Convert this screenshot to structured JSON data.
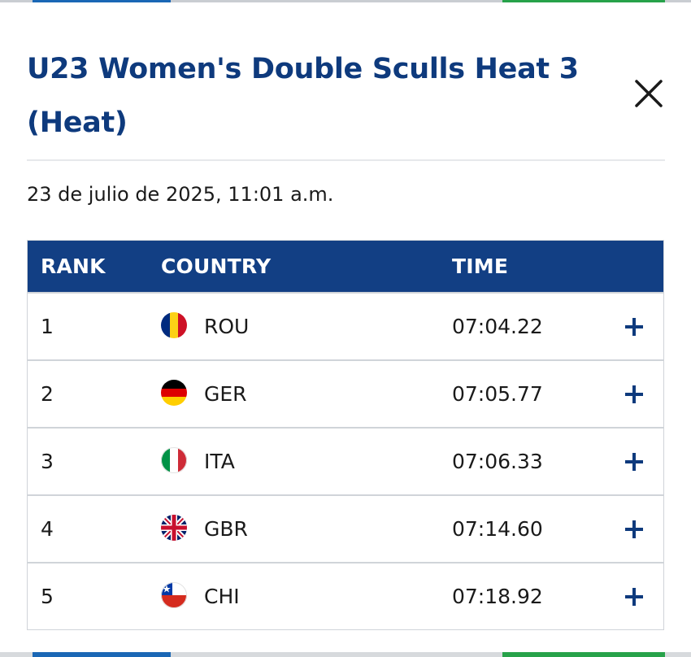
{
  "modal": {
    "title": "U23 Women's Double Sculls Heat 3 (Heat)",
    "date": "23 de julio de 2025, 11:01 a.m.",
    "close_icon": "close-icon"
  },
  "table": {
    "headers": {
      "rank": "RANK",
      "country": "COUNTRY",
      "time": "TIME"
    },
    "rows": [
      {
        "rank": "1",
        "country": "ROU",
        "time": "07:04.22",
        "flag": "romania-flag-icon"
      },
      {
        "rank": "2",
        "country": "GER",
        "time": "07:05.77",
        "flag": "germany-flag-icon"
      },
      {
        "rank": "3",
        "country": "ITA",
        "time": "07:06.33",
        "flag": "italy-flag-icon"
      },
      {
        "rank": "4",
        "country": "GBR",
        "time": "07:14.60",
        "flag": "uk-flag-icon"
      },
      {
        "rank": "5",
        "country": "CHI",
        "time": "07:18.92",
        "flag": "chile-flag-icon"
      }
    ],
    "expand_icon": "plus-icon"
  },
  "colors": {
    "title": "#0e3a7d",
    "header_bg": "#123f84",
    "header_text": "#ffffff",
    "plus": "#0e3a7d",
    "border": "#d0d4d9"
  }
}
